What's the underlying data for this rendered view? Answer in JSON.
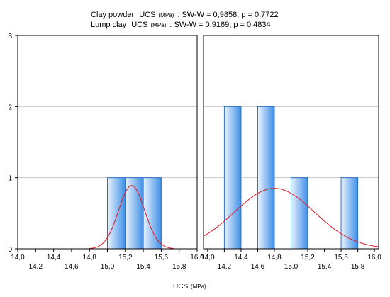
{
  "chart_data": [
    {
      "type": "bar",
      "panel": "left",
      "subtitle_name": "Clay powder",
      "subtitle_measure": "UCS",
      "subtitle_unit": "(MPa)",
      "subtitle_stats": ":  SW-W = 0,9858; p = 0.7722",
      "bins": [
        [
          15.0,
          15.2
        ],
        [
          15.2,
          15.4
        ],
        [
          15.4,
          15.6
        ]
      ],
      "values": [
        1,
        1,
        1
      ],
      "normal_fit": {
        "mean": 15.27,
        "sd": 0.145,
        "peak": 0.89
      },
      "xlim": [
        14.0,
        16.0
      ],
      "ylim": [
        0,
        3
      ],
      "x_ticks_upper": [
        "14,0",
        "14,4",
        "14,8",
        "15,2",
        "15,6",
        "16,0"
      ],
      "x_ticks_upper_values": [
        14.0,
        14.4,
        14.8,
        15.2,
        15.6,
        16.0
      ],
      "x_ticks_lower": [
        "14,2",
        "14,6",
        "15,0",
        "15,4",
        "15,8"
      ],
      "x_ticks_lower_values": [
        14.2,
        14.6,
        15.0,
        15.4,
        15.8
      ],
      "y_ticks": [
        "0",
        "1",
        "2",
        "3"
      ],
      "grid": true
    },
    {
      "type": "bar",
      "panel": "right",
      "subtitle_name": "Lump clay",
      "subtitle_measure": "UCS",
      "subtitle_unit": "(MPa)",
      "subtitle_stats": ":  SW-W = 0,9169; p = 0.4834",
      "bins": [
        [
          14.2,
          14.4
        ],
        [
          14.6,
          14.8
        ],
        [
          15.0,
          15.2
        ],
        [
          15.6,
          15.8
        ]
      ],
      "values": [
        2,
        2,
        1,
        1
      ],
      "normal_fit": {
        "mean": 14.8,
        "sd": 0.48,
        "peak": 0.85
      },
      "xlim": [
        13.95,
        16.05
      ],
      "ylim": [
        0,
        3
      ],
      "x_ticks_upper": [
        "14,0",
        "14,4",
        "14,8",
        "15,2",
        "15,6",
        "16,0"
      ],
      "x_ticks_upper_values": [
        14.0,
        14.4,
        14.8,
        15.2,
        15.6,
        16.0
      ],
      "x_ticks_lower": [
        "14,2",
        "14,6",
        "15,0",
        "15,4",
        "15,8"
      ],
      "x_ticks_lower_values": [
        14.2,
        14.6,
        15.0,
        15.4,
        15.8
      ],
      "grid": true
    }
  ],
  "xlabel_measure": "UCS",
  "xlabel_unit": "(MPa)",
  "colors": {
    "bar_light": "#eaf3fd",
    "bar_dark": "#3f8fe8",
    "bar_stroke": "#2a6fc4",
    "fit_curve": "#e0181c",
    "grid": "#c8c8c8",
    "frame": "#000000"
  }
}
